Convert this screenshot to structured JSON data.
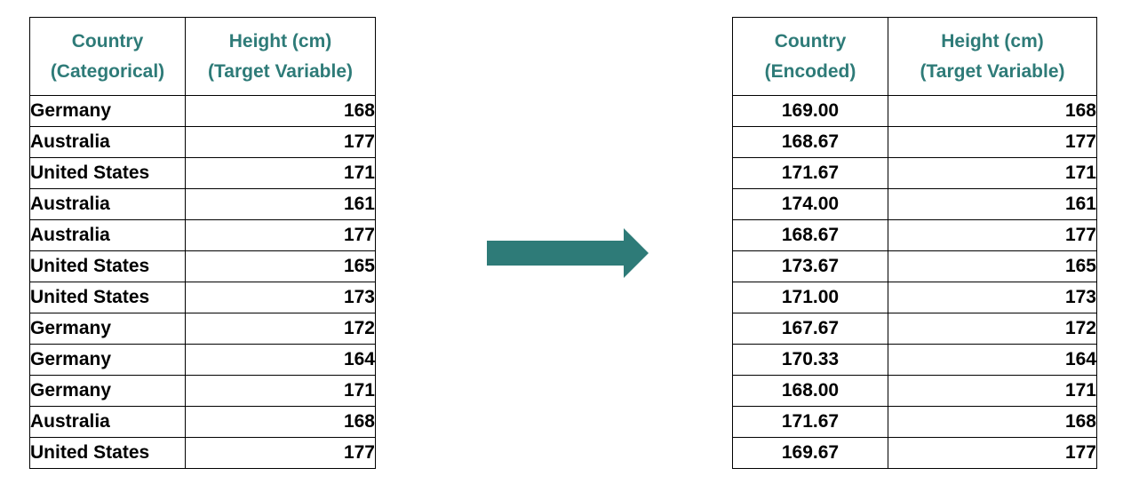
{
  "colors": {
    "header_text": "#2e7b78",
    "arrow": "#2e7b78",
    "grid": "#000000"
  },
  "left_table": {
    "headers": [
      {
        "line1": "Country",
        "line2": "(Categorical)"
      },
      {
        "line1": "Height (cm)",
        "line2": "(Target Variable)"
      }
    ],
    "rows": [
      {
        "country": "Germany",
        "height": "168"
      },
      {
        "country": "Australia",
        "height": "177"
      },
      {
        "country": "United States",
        "height": "171"
      },
      {
        "country": "Australia",
        "height": "161"
      },
      {
        "country": "Australia",
        "height": "177"
      },
      {
        "country": "United States",
        "height": "165"
      },
      {
        "country": "United States",
        "height": "173"
      },
      {
        "country": "Germany",
        "height": "172"
      },
      {
        "country": "Germany",
        "height": "164"
      },
      {
        "country": "Germany",
        "height": "171"
      },
      {
        "country": "Australia",
        "height": "168"
      },
      {
        "country": "United States",
        "height": "177"
      }
    ]
  },
  "right_table": {
    "headers": [
      {
        "line1": "Country",
        "line2": "(Encoded)"
      },
      {
        "line1": "Height (cm)",
        "line2": "(Target Variable)"
      }
    ],
    "rows": [
      {
        "encoded": "169.00",
        "height": "168"
      },
      {
        "encoded": "168.67",
        "height": "177"
      },
      {
        "encoded": "171.67",
        "height": "171"
      },
      {
        "encoded": "174.00",
        "height": "161"
      },
      {
        "encoded": "168.67",
        "height": "177"
      },
      {
        "encoded": "173.67",
        "height": "165"
      },
      {
        "encoded": "171.00",
        "height": "173"
      },
      {
        "encoded": "167.67",
        "height": "172"
      },
      {
        "encoded": "170.33",
        "height": "164"
      },
      {
        "encoded": "168.00",
        "height": "171"
      },
      {
        "encoded": "171.67",
        "height": "168"
      },
      {
        "encoded": "169.67",
        "height": "177"
      }
    ]
  },
  "arrow_icon": "right-arrow-icon"
}
